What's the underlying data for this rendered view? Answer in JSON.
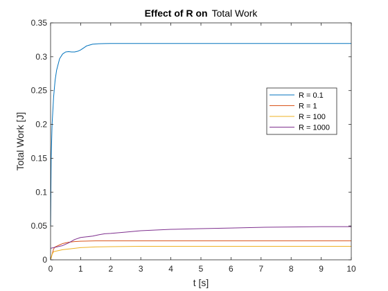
{
  "chart_data": {
    "type": "line",
    "title_bold": "Effect of R on",
    "title_normal": "Total Work",
    "xlabel": "t [s]",
    "ylabel": "Total Work [J]",
    "xlim": [
      0,
      10
    ],
    "ylim": [
      0,
      0.35
    ],
    "xticks": [
      0,
      1,
      2,
      3,
      4,
      5,
      6,
      7,
      8,
      9,
      10
    ],
    "yticks": [
      0,
      0.05,
      0.1,
      0.15,
      0.2,
      0.25,
      0.3,
      0.35
    ],
    "xtick_labels": [
      "0",
      "1",
      "2",
      "3",
      "4",
      "5",
      "6",
      "7",
      "8",
      "9",
      "10"
    ],
    "ytick_labels": [
      "0",
      "0.05",
      "0.1",
      "0.15",
      "0.2",
      "0.25",
      "0.3",
      "0.35"
    ],
    "grid": false,
    "legend_position": "right-middle",
    "series": [
      {
        "name": "R = 0.1",
        "color": "#0072BD",
        "x": [
          0,
          0.02,
          0.05,
          0.1,
          0.15,
          0.2,
          0.3,
          0.4,
          0.5,
          0.6,
          0.7,
          0.8,
          0.9,
          1.0,
          1.1,
          1.2,
          1.4,
          1.6,
          1.8,
          2.0,
          2.5,
          3.0,
          4.0,
          5.0,
          6.0,
          7.0,
          8.0,
          9.0,
          10.0
        ],
        "y": [
          0.05,
          0.15,
          0.2,
          0.24,
          0.265,
          0.28,
          0.297,
          0.304,
          0.307,
          0.3075,
          0.307,
          0.307,
          0.308,
          0.31,
          0.313,
          0.316,
          0.3185,
          0.3192,
          0.3194,
          0.3195,
          0.3195,
          0.3195,
          0.3195,
          0.3195,
          0.3195,
          0.3195,
          0.3195,
          0.3195,
          0.3195
        ]
      },
      {
        "name": "R = 1",
        "color": "#D95319",
        "x": [
          0,
          0.05,
          0.1,
          0.15,
          0.2,
          0.3,
          0.4,
          0.6,
          0.8,
          1.0,
          1.5,
          2.0,
          3.0,
          4.0,
          5.0,
          6.0,
          7.0,
          8.0,
          9.0,
          10.0
        ],
        "y": [
          0,
          0.008,
          0.016,
          0.019,
          0.02,
          0.022,
          0.024,
          0.026,
          0.027,
          0.0275,
          0.028,
          0.028,
          0.028,
          0.028,
          0.028,
          0.028,
          0.028,
          0.028,
          0.028,
          0.028
        ]
      },
      {
        "name": "R = 100",
        "color": "#EDB120",
        "x": [
          0,
          0.05,
          0.1,
          0.2,
          0.4,
          0.6,
          0.8,
          1.0,
          1.5,
          2.0,
          3.0,
          4.0,
          5.0,
          6.0,
          7.0,
          8.0,
          9.0,
          10.0
        ],
        "y": [
          0,
          0.008,
          0.012,
          0.013,
          0.015,
          0.016,
          0.017,
          0.018,
          0.019,
          0.0195,
          0.02,
          0.02,
          0.02,
          0.02,
          0.02,
          0.02,
          0.02,
          0.02
        ]
      },
      {
        "name": "R = 1000",
        "color": "#7E2F8E",
        "x": [
          0,
          0.05,
          0.1,
          0.2,
          0.4,
          0.6,
          0.8,
          1.0,
          1.2,
          1.4,
          1.6,
          1.8,
          2.0,
          2.5,
          3.0,
          3.5,
          4.0,
          5.0,
          6.0,
          7.0,
          8.0,
          9.0,
          10.0
        ],
        "y": [
          0.017,
          0.0175,
          0.018,
          0.019,
          0.021,
          0.025,
          0.03,
          0.033,
          0.034,
          0.035,
          0.037,
          0.0385,
          0.039,
          0.041,
          0.043,
          0.044,
          0.045,
          0.046,
          0.047,
          0.048,
          0.0485,
          0.049,
          0.049
        ]
      }
    ]
  }
}
